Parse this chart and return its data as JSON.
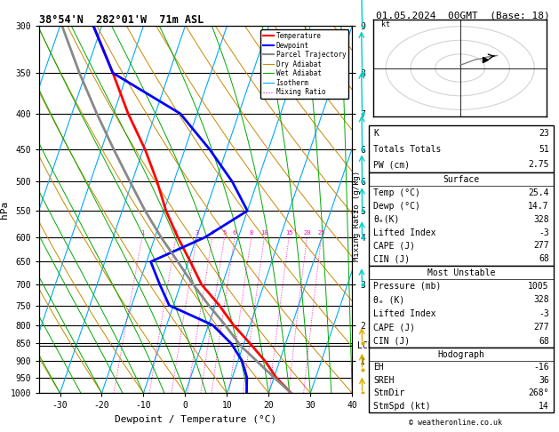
{
  "title_left": "38°54'N  282°01'W  71m ASL",
  "title_right": "01.05.2024  00GMT  (Base: 18)",
  "xlabel": "Dewpoint / Temperature (°C)",
  "ylabel_left": "hPa",
  "temp_color": "#ff0000",
  "dewp_color": "#0000ff",
  "parcel_color": "#888888",
  "dry_adiabat_color": "#cc8800",
  "wet_adiabat_color": "#00aa00",
  "isotherm_color": "#00aaff",
  "mixing_ratio_color": "#ff00bb",
  "background_color": "#ffffff",
  "legend_items": [
    "Temperature",
    "Dewpoint",
    "Parcel Trajectory",
    "Dry Adiabat",
    "Wet Adiabat",
    "Isotherm",
    "Mixing Ratio"
  ],
  "xlim": [
    -35,
    40
  ],
  "temp_profile_p": [
    1000,
    950,
    900,
    850,
    800,
    750,
    700,
    650,
    600,
    550,
    500,
    450,
    400,
    350,
    300
  ],
  "temp_profile_t": [
    25.4,
    20.5,
    16.5,
    11.5,
    6.0,
    1.0,
    -5.0,
    -9.5,
    -14.5,
    -19.5,
    -24.0,
    -29.5,
    -36.5,
    -43.5,
    -52.0
  ],
  "dewp_profile_p": [
    1000,
    950,
    900,
    850,
    800,
    750,
    700,
    650,
    600,
    550,
    500,
    450,
    400,
    350,
    300
  ],
  "dewp_profile_t": [
    14.7,
    13.5,
    11.0,
    7.0,
    1.0,
    -11.0,
    -15.0,
    -19.0,
    -8.0,
    0.0,
    -6.0,
    -14.0,
    -24.0,
    -43.5,
    -52.0
  ],
  "parcel_profile_p": [
    1000,
    950,
    900,
    857,
    800,
    750,
    700,
    650,
    600,
    550,
    500,
    450,
    400,
    350,
    300
  ],
  "parcel_profile_t": [
    25.4,
    20.0,
    14.5,
    9.5,
    4.0,
    -1.5,
    -7.0,
    -12.5,
    -18.5,
    -24.5,
    -30.5,
    -37.0,
    -44.0,
    -51.5,
    -59.5
  ],
  "mixing_ratio_values": [
    1,
    2,
    3,
    4,
    5,
    6,
    8,
    10,
    15,
    20,
    25
  ],
  "km_labels": [
    [
      300,
      "9"
    ],
    [
      350,
      "8"
    ],
    [
      400,
      "7"
    ],
    [
      450,
      "6"
    ],
    [
      500,
      "6"
    ],
    [
      550,
      "5"
    ],
    [
      600,
      "4"
    ],
    [
      700,
      "3"
    ],
    [
      800,
      "2"
    ],
    [
      900,
      "1"
    ]
  ],
  "lcl_pressure": 857,
  "wind_barb_p": [
    300,
    350,
    400,
    450,
    500,
    550,
    600,
    700,
    850,
    925,
    1000
  ],
  "wind_barb_u": [
    -10,
    -8,
    -8,
    -5,
    -5,
    -3,
    -5,
    -8,
    -5,
    -3,
    -2
  ],
  "wind_barb_v": [
    15,
    12,
    12,
    10,
    8,
    7,
    5,
    5,
    5,
    5,
    5
  ],
  "right_panel": {
    "K": 23,
    "Totals_Totals": 51,
    "PW_cm": 2.75,
    "Surface_Temp": 25.4,
    "Surface_Dewp": 14.7,
    "Surface_theta_e": 328,
    "Surface_LI": -3,
    "Surface_CAPE": 277,
    "Surface_CIN": 68,
    "MU_Pressure": 1005,
    "MU_theta_e": 328,
    "MU_LI": -3,
    "MU_CAPE": 277,
    "MU_CIN": 68,
    "EH": -16,
    "SREH": 36,
    "StmDir": 268,
    "StmSpd_kt": 14
  }
}
